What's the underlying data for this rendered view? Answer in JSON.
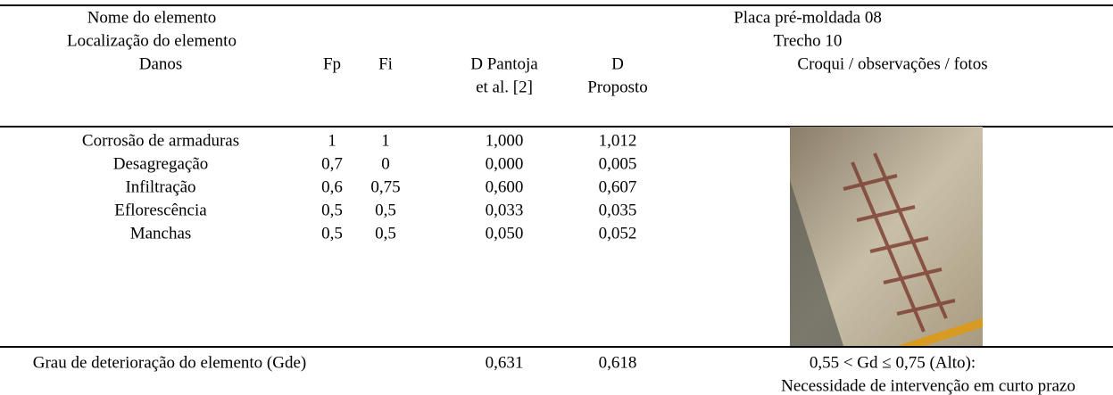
{
  "header": {
    "element_name_label": "Nome do elemento",
    "element_name": "Placa pré-moldada 08",
    "location_label": "Localização do elemento",
    "location": "Trecho 10"
  },
  "table": {
    "columns": [
      [
        "Danos"
      ],
      [
        "Fp"
      ],
      [
        "Fi"
      ],
      [
        "D Pantoja",
        "et al. [2]"
      ],
      [
        "D",
        "Proposto"
      ],
      [
        "Croqui / observações / fotos"
      ]
    ],
    "rows": [
      [
        "Corrosão de armaduras",
        "1",
        "1",
        "1,000",
        "1,012"
      ],
      [
        "Desagregação",
        "0,7",
        "0",
        "0,000",
        "0,005"
      ],
      [
        "Infiltração",
        "0,6",
        "0,75",
        "0,600",
        "0,607"
      ],
      [
        "Eflorescência",
        "0,5",
        "0,5",
        "0,033",
        "0,035"
      ],
      [
        "Manchas",
        "0,5",
        "0,5",
        "0,050",
        "0,052"
      ]
    ]
  },
  "footer": {
    "label": "Grau de deterioração do elemento (Gde)",
    "d_pantoja": "0,631",
    "d_proposto": "0,618",
    "classification": "0,55 < Gd ≤ 0,75 (Alto):",
    "recommendation": "Necessidade de intervenção em curto prazo"
  }
}
